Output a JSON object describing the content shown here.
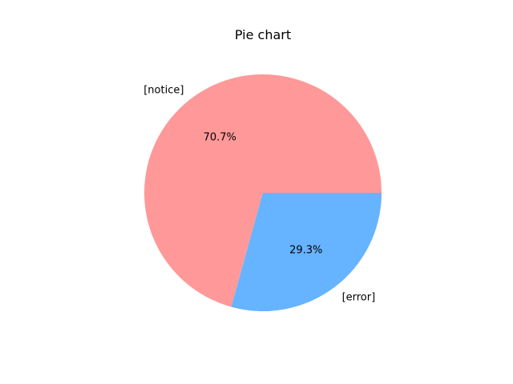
{
  "chart_data": {
    "type": "pie",
    "title": "Pie chart",
    "slices": [
      {
        "label": "[notice]",
        "value": 70.7,
        "pct_label": "70.7%",
        "color": "#ff9999"
      },
      {
        "label": "[error]",
        "value": 29.3,
        "pct_label": "29.3%",
        "color": "#66b3ff"
      }
    ],
    "start_angle_deg": 0,
    "direction": "counterclockwise"
  }
}
